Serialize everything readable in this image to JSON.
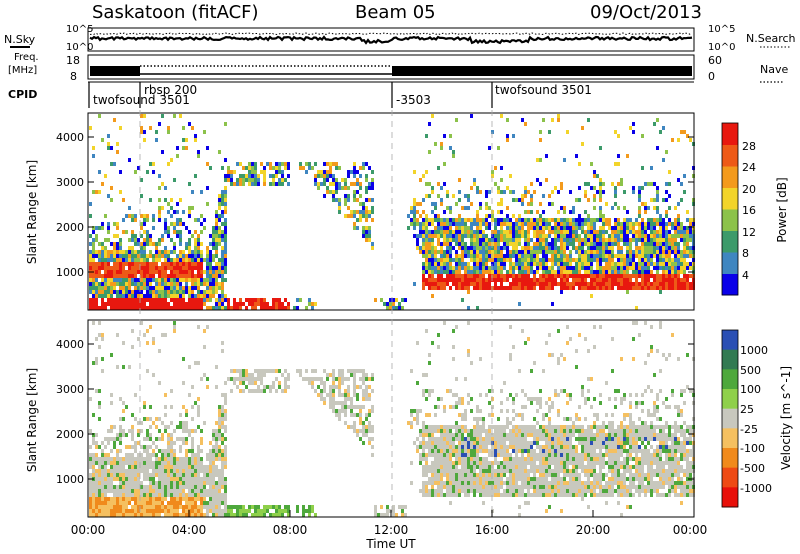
{
  "header": {
    "station": "Saskatoon (fitACF)",
    "beam": "Beam 05",
    "date": "09/Oct/2013"
  },
  "noise_panel": {
    "left_label": "N.Sky",
    "right_label": "N.Search",
    "ytick_top": "10^5",
    "ytick_bottom": "10^0"
  },
  "freq_panel": {
    "left_label_1": "Freq.",
    "left_label_2": "[MHz]",
    "right_label": "Nave",
    "left_ticks": [
      "18",
      "8"
    ],
    "right_ticks": [
      "60",
      "0"
    ]
  },
  "cpid_panel": {
    "label": "CPID",
    "segments": [
      {
        "name": "twofsound 3501",
        "start_hour": 0.0
      },
      {
        "name": "rbsp 200",
        "start_hour": 2.0
      },
      {
        "name": "-3503",
        "start_hour": 12.0
      },
      {
        "name": "twofsound 3501",
        "start_hour": 16.0
      }
    ]
  },
  "axes": {
    "ylabel": "Slant Range [km]",
    "xlabel": "Time UT",
    "yticks": [
      "1000",
      "2000",
      "3000",
      "4000"
    ],
    "xticks": [
      "00:00",
      "04:00",
      "08:00",
      "12:00",
      "16:00",
      "20:00",
      "00:00"
    ]
  },
  "power_scale": {
    "label": "Power [dB]",
    "ticks": [
      "4",
      "8",
      "12",
      "16",
      "20",
      "24",
      "28"
    ],
    "colors": [
      "#0a00e8",
      "#3f86c0",
      "#3c9a6a",
      "#8cc24a",
      "#f2d42a",
      "#f39a1c",
      "#ee5a17",
      "#e8180f"
    ]
  },
  "velocity_scale": {
    "label": "Velocity [m s^-1]",
    "ticks": [
      "1000",
      "500",
      "100",
      "25",
      "-25",
      "-100",
      "-500",
      "-1000"
    ],
    "colors": [
      "#2a4fb4",
      "#327a52",
      "#4ea83c",
      "#8fd04a",
      "#c8c8be",
      "#f5c060",
      "#f08a1c",
      "#ee4a14",
      "#e8100a"
    ]
  },
  "chart_data": {
    "type": "heatmap",
    "title": "Saskatoon (fitACF)  Beam 05  09/Oct/2013",
    "xlabel": "Time UT",
    "ylabel": "Slant Range [km]",
    "xlim_hours": [
      0,
      24
    ],
    "ylim_km": [
      180,
      4500
    ],
    "grid": "dashed verticals at 02:00, 12:00, 16:00",
    "panels": [
      {
        "name": "Power [dB]",
        "range": [
          0,
          30
        ]
      },
      {
        "name": "Velocity [m s^-1]",
        "range": [
          -1000,
          1000
        ]
      }
    ]
  }
}
